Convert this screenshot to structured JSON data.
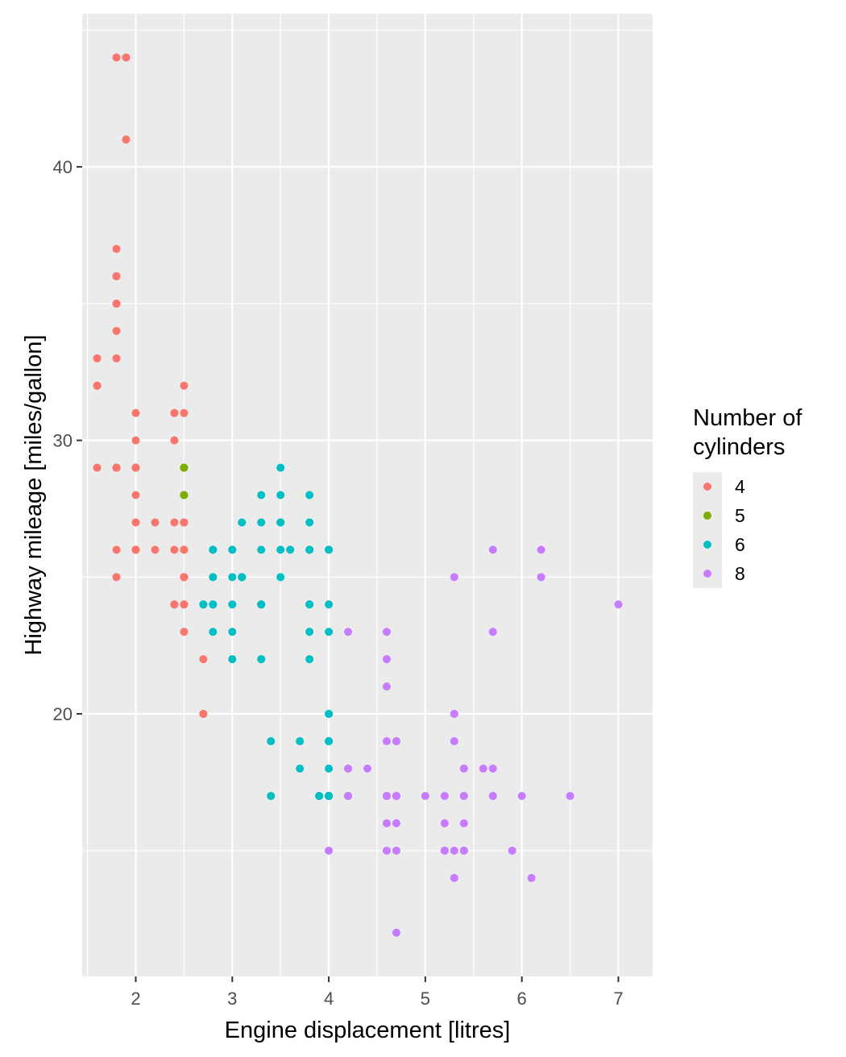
{
  "chart_data": {
    "type": "scatter",
    "xlabel": "Engine displacement [litres]",
    "ylabel": "Highway mileage [miles/gallon]",
    "xlim": [
      1.445,
      7.355
    ],
    "ylim": [
      10.4,
      45.6
    ],
    "x_ticks": [
      2,
      3,
      4,
      5,
      6,
      7
    ],
    "y_ticks": [
      20,
      30,
      40
    ],
    "x_tick_labels": [
      "2",
      "3",
      "4",
      "5",
      "6",
      "7"
    ],
    "y_tick_labels": [
      "20",
      "30",
      "40"
    ],
    "grid": true,
    "panel_background": "#ebebeb",
    "legend": {
      "title": "Number of cylinders",
      "title_lines": [
        "Number of",
        "cylinders"
      ],
      "position": "right"
    },
    "series": [
      {
        "name": "4",
        "color": "#F8766D",
        "points": [
          [
            1.8,
            29
          ],
          [
            1.8,
            29
          ],
          [
            2.0,
            31
          ],
          [
            2.0,
            30
          ],
          [
            1.8,
            26
          ],
          [
            1.8,
            25
          ],
          [
            2.0,
            28
          ],
          [
            2.0,
            26
          ],
          [
            2.4,
            27
          ],
          [
            2.4,
            30
          ],
          [
            2.2,
            26
          ],
          [
            2.2,
            27
          ],
          [
            2.4,
            30
          ],
          [
            2.4,
            31
          ],
          [
            1.8,
            35
          ],
          [
            1.8,
            37
          ],
          [
            1.8,
            35
          ],
          [
            1.6,
            33
          ],
          [
            1.6,
            32
          ],
          [
            1.6,
            32
          ],
          [
            1.6,
            29
          ],
          [
            1.6,
            32
          ],
          [
            1.8,
            34
          ],
          [
            1.8,
            36
          ],
          [
            1.8,
            36
          ],
          [
            2.0,
            29
          ],
          [
            2.0,
            26
          ],
          [
            2.0,
            27
          ],
          [
            2.5,
            26
          ],
          [
            2.5,
            25
          ],
          [
            2.5,
            27
          ],
          [
            2.5,
            25
          ],
          [
            2.5,
            25
          ],
          [
            2.5,
            27
          ],
          [
            2.5,
            24
          ],
          [
            2.4,
            24
          ],
          [
            2.4,
            26
          ],
          [
            2.5,
            26
          ],
          [
            2.5,
            24
          ],
          [
            2.5,
            31
          ],
          [
            2.4,
            31
          ],
          [
            1.8,
            44
          ],
          [
            1.8,
            29
          ],
          [
            1.9,
            41
          ],
          [
            2.0,
            29
          ],
          [
            2.0,
            26
          ],
          [
            2.0,
            29
          ],
          [
            1.9,
            44
          ],
          [
            2.7,
            20
          ],
          [
            2.7,
            22
          ],
          [
            2.7,
            20
          ],
          [
            2.4,
            24
          ],
          [
            2.5,
            23
          ],
          [
            2.5,
            32
          ],
          [
            1.8,
            29
          ],
          [
            1.8,
            33
          ],
          [
            2.0,
            26
          ]
        ]
      },
      {
        "name": "5",
        "color": "#7CAE00",
        "points": [
          [
            2.5,
            29
          ],
          [
            2.5,
            29
          ],
          [
            2.5,
            28
          ],
          [
            2.5,
            28
          ]
        ]
      },
      {
        "name": "6",
        "color": "#00BFC4",
        "points": [
          [
            2.8,
            26
          ],
          [
            2.8,
            26
          ],
          [
            3.1,
            27
          ],
          [
            2.8,
            25
          ],
          [
            3.1,
            25
          ],
          [
            2.8,
            24
          ],
          [
            3.1,
            25
          ],
          [
            3.1,
            25
          ],
          [
            2.7,
            24
          ],
          [
            2.7,
            24
          ],
          [
            3.8,
            24
          ],
          [
            3.8,
            26
          ],
          [
            3.3,
            24
          ],
          [
            3.8,
            22
          ],
          [
            3.3,
            24
          ],
          [
            3.3,
            22
          ],
          [
            3.0,
            23
          ],
          [
            4.0,
            17
          ],
          [
            3.3,
            22
          ],
          [
            3.3,
            24
          ],
          [
            3.8,
            23
          ],
          [
            3.8,
            24
          ],
          [
            4.0,
            24
          ],
          [
            3.7,
            19
          ],
          [
            3.7,
            18
          ],
          [
            3.9,
            17
          ],
          [
            3.9,
            17
          ],
          [
            4.0,
            17
          ],
          [
            4.0,
            17
          ],
          [
            4.0,
            19
          ],
          [
            4.0,
            17
          ],
          [
            4.0,
            20
          ],
          [
            4.0,
            20
          ],
          [
            4.0,
            17
          ],
          [
            4.0,
            17
          ],
          [
            4.0,
            19
          ],
          [
            4.2,
            17
          ],
          [
            3.4,
            17
          ],
          [
            3.4,
            19
          ],
          [
            3.5,
            25
          ],
          [
            3.5,
            28
          ],
          [
            3.5,
            26
          ],
          [
            3.6,
            26
          ],
          [
            2.8,
            24
          ],
          [
            2.8,
            23
          ],
          [
            3.8,
            26
          ],
          [
            3.0,
            26
          ],
          [
            3.0,
            25
          ],
          [
            3.3,
            26
          ],
          [
            3.0,
            26
          ],
          [
            3.0,
            24
          ],
          [
            3.5,
            29
          ],
          [
            3.5,
            27
          ],
          [
            3.5,
            27
          ],
          [
            3.8,
            28
          ],
          [
            3.8,
            27
          ],
          [
            3.3,
            28
          ],
          [
            3.3,
            27
          ],
          [
            3.0,
            22
          ],
          [
            4.0,
            23
          ],
          [
            4.0,
            26
          ],
          [
            4.0,
            18
          ],
          [
            4.0,
            19
          ],
          [
            4.0,
            26
          ]
        ]
      },
      {
        "name": "8",
        "color": "#C77CFF",
        "points": [
          [
            5.7,
            26
          ],
          [
            5.7,
            23
          ],
          [
            6.2,
            26
          ],
          [
            6.2,
            25
          ],
          [
            7.0,
            24
          ],
          [
            5.3,
            15
          ],
          [
            5.3,
            20
          ],
          [
            5.7,
            17
          ],
          [
            6.5,
            17
          ],
          [
            5.2,
            17
          ],
          [
            5.2,
            15
          ],
          [
            5.7,
            17
          ],
          [
            5.9,
            15
          ],
          [
            4.7,
            16
          ],
          [
            4.7,
            12
          ],
          [
            4.7,
            17
          ],
          [
            4.7,
            17
          ],
          [
            5.2,
            16
          ],
          [
            5.2,
            15
          ],
          [
            4.6,
            17
          ],
          [
            5.4,
            17
          ],
          [
            5.4,
            16
          ],
          [
            4.7,
            19
          ],
          [
            4.7,
            19
          ],
          [
            4.7,
            17
          ],
          [
            5.7,
            18
          ],
          [
            6.1,
            14
          ],
          [
            4.6,
            21
          ],
          [
            5.4,
            18
          ],
          [
            5.4,
            18
          ],
          [
            4.6,
            17
          ],
          [
            5.0,
            17
          ],
          [
            4.2,
            17
          ],
          [
            4.6,
            16
          ],
          [
            4.6,
            15
          ],
          [
            5.4,
            15
          ],
          [
            5.4,
            17
          ],
          [
            4.6,
            22
          ],
          [
            4.4,
            18
          ],
          [
            5.3,
            25
          ],
          [
            4.6,
            22
          ],
          [
            4.6,
            19
          ],
          [
            4.6,
            17
          ],
          [
            4.6,
            23
          ],
          [
            5.6,
            18
          ],
          [
            4.7,
            17
          ],
          [
            4.0,
            15
          ],
          [
            5.3,
            19
          ],
          [
            5.3,
            14
          ],
          [
            5.3,
            20
          ],
          [
            4.2,
            18
          ],
          [
            4.2,
            23
          ],
          [
            6.0,
            17
          ],
          [
            4.2,
            18
          ],
          [
            5.4,
            15
          ],
          [
            4.7,
            15
          ]
        ]
      }
    ]
  }
}
